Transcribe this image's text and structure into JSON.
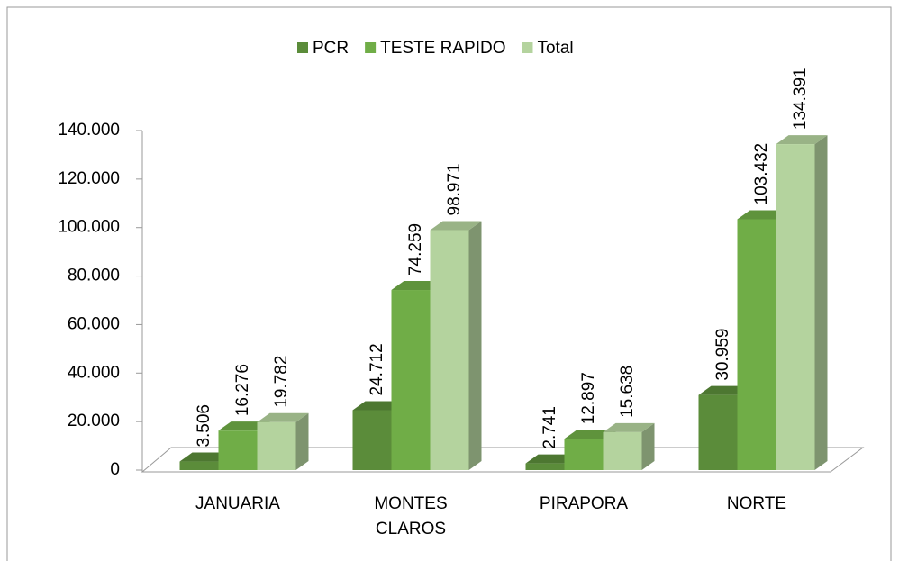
{
  "chart_data": {
    "type": "bar3d",
    "categories": [
      "JANUARIA",
      "MONTES CLAROS",
      "PIRAPORA",
      "NORTE"
    ],
    "series": [
      {
        "name": "PCR",
        "color": "#5b8c3a",
        "values": [
          3506,
          24712,
          2741,
          30959
        ],
        "value_labels": [
          "3.506",
          "24.712",
          "2.741",
          "30.959"
        ]
      },
      {
        "name": "TESTE RAPIDO",
        "color": "#70ad47",
        "values": [
          16276,
          74259,
          12897,
          103432
        ],
        "value_labels": [
          "16.276",
          "74.259",
          "12.897",
          "103.432"
        ]
      },
      {
        "name": "Total",
        "color": "#b4d39e",
        "values": [
          19782,
          98971,
          15638,
          134391
        ],
        "value_labels": [
          "19.782",
          "98.971",
          "15.638",
          "134.391"
        ]
      }
    ],
    "ylim": [
      0,
      140000
    ],
    "yticks": [
      0,
      {
        "value": 20000,
        "label": "20.000"
      },
      {
        "value": 40000,
        "label": "40.000"
      },
      {
        "value": 60000,
        "label": "60.000"
      },
      {
        "value": 80000,
        "label": "80.000"
      },
      {
        "value": 100000,
        "label": "100.000"
      },
      {
        "value": 120000,
        "label": "120.000"
      },
      {
        "value": 140000,
        "label": "140.000"
      }
    ],
    "legend": "top"
  }
}
